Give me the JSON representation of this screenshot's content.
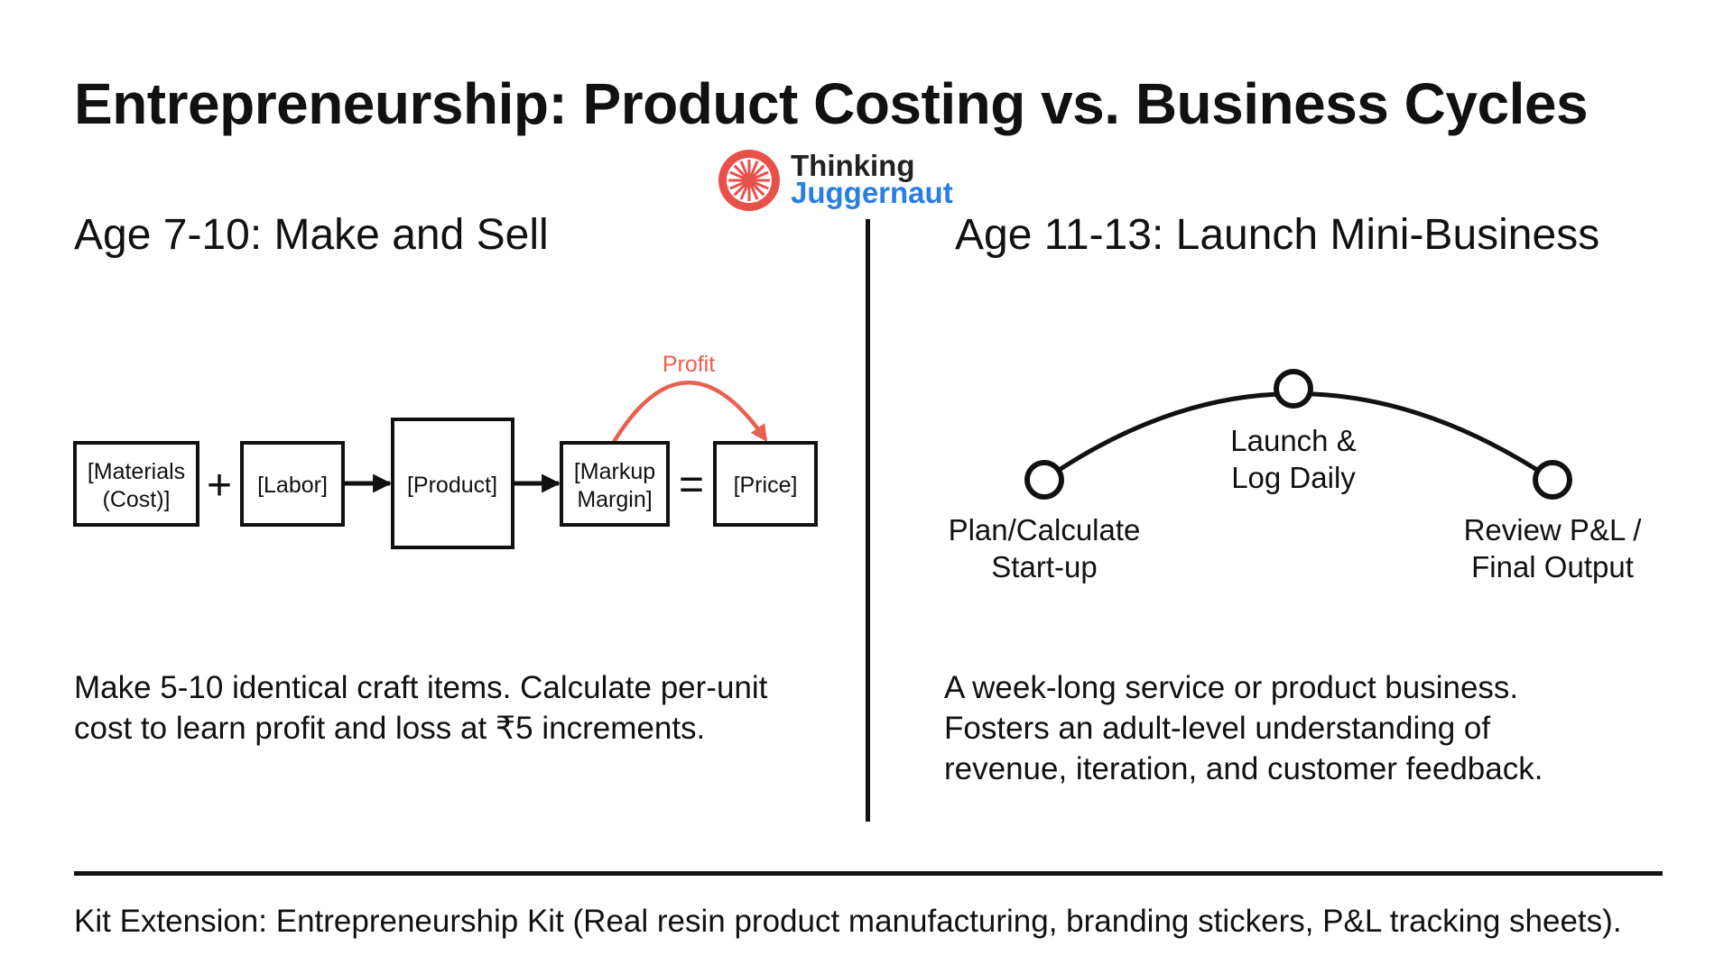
{
  "title": "Entrepreneurship: Product Costing vs. Business Cycles",
  "logo": {
    "line1": "Thinking",
    "line2": "Juggernaut",
    "icon": "wheel-logo-icon",
    "colors": {
      "mark": "#e8504a",
      "line1": "#222222",
      "line2": "#2a7de1"
    }
  },
  "left": {
    "heading": "Age 7-10: Make and Sell",
    "flow": {
      "boxes": [
        {
          "lines": [
            "[Materials",
            "(Cost)]"
          ]
        },
        {
          "lines": [
            "[Labor]"
          ]
        },
        {
          "lines": [
            "[Product]"
          ]
        },
        {
          "lines": [
            "[Markup",
            "Margin]"
          ]
        },
        {
          "lines": [
            "[Price]"
          ]
        }
      ],
      "operators": [
        "+",
        "=",
        "→",
        "→"
      ],
      "profit_label": "Profit",
      "accent_color": "#e8604f"
    },
    "description": "Make 5-10 identical craft items. Calculate per-unit\ncost to learn profit and loss at ₹5 increments."
  },
  "right": {
    "heading": "Age 11-13: Launch Mini-Business",
    "timeline": {
      "points": [
        {
          "label": [
            "Plan/Calculate",
            "Start-up"
          ]
        },
        {
          "label": [
            "Launch &",
            "Log Daily"
          ]
        },
        {
          "label": [
            "Review P&L /",
            "Final Output"
          ]
        }
      ]
    },
    "description": "A week-long service or product business.\nFosters an adult-level understanding of\nrevenue, iteration, and customer feedback."
  },
  "footer": "Kit Extension: Entrepreneurship Kit (Real resin product manufacturing, branding stickers, P&L tracking sheets)."
}
